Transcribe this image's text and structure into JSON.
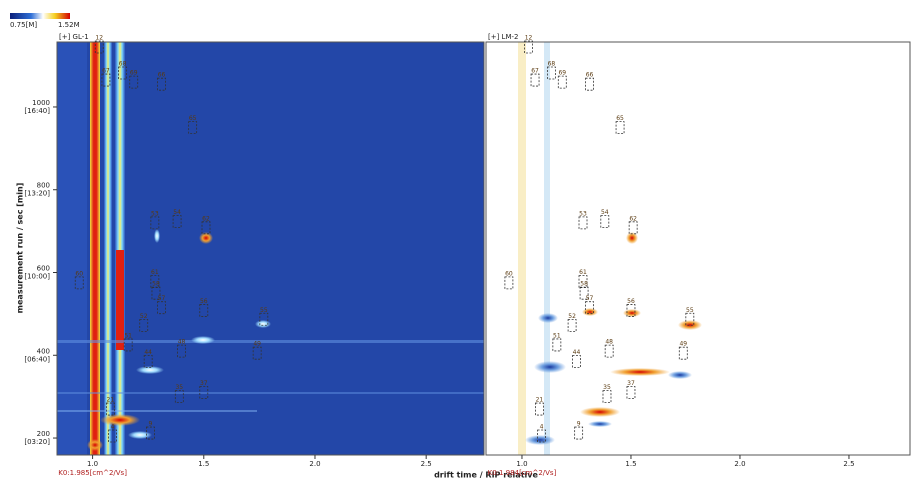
{
  "chart_data": {
    "type": "heatmap",
    "colorbar": {
      "min_label": "0.75[M]",
      "max_label": "1.52M"
    },
    "x_label": "drift time / RIP relative",
    "y_label": "measurement run / sec [min]",
    "ylim": [
      159,
      1157
    ],
    "yticks": [
      {
        "value": 200,
        "label": "200",
        "time": "[03:20]"
      },
      {
        "value": 400,
        "label": "400",
        "time": "[06:40]"
      },
      {
        "value": 600,
        "label": "600",
        "time": "[10:00]"
      },
      {
        "value": 800,
        "label": "800",
        "time": "[13:20]"
      },
      {
        "value": 1000,
        "label": "1000",
        "time": "[16:40]"
      }
    ],
    "panels": [
      {
        "title": "[+] GL-1",
        "k0_label": "K0:1.985[cm^2/Vs]",
        "xlim": [
          0.84,
          2.76
        ],
        "xticks": [
          {
            "value": 1,
            "label": "1.0"
          },
          1.5,
          {
            "value": 2,
            "label": "2.0"
          },
          2.5
        ]
      },
      {
        "title": "[+] LM-2",
        "k0_label": "K0:1.984[cm^2/Vs]",
        "xlim": [
          0.835,
          2.78
        ],
        "xticks": [
          {
            "value": 1,
            "label": "1.0"
          },
          1.5,
          {
            "value": 2,
            "label": "2.0"
          },
          2.5
        ]
      }
    ],
    "peaks": [
      {
        "name": "12",
        "x": 1.03,
        "y": 1145
      },
      {
        "name": "67",
        "x": 1.06,
        "y": 1065
      },
      {
        "name": "68",
        "x": 1.135,
        "y": 1082
      },
      {
        "name": "69",
        "x": 1.185,
        "y": 1060
      },
      {
        "name": "66",
        "x": 1.31,
        "y": 1055
      },
      {
        "name": "65",
        "x": 1.45,
        "y": 950
      },
      {
        "name": "53",
        "x": 1.28,
        "y": 720
      },
      {
        "name": "54",
        "x": 1.38,
        "y": 723
      },
      {
        "name": "62",
        "x": 1.51,
        "y": 708
      },
      {
        "name": "60",
        "x": 0.94,
        "y": 575
      },
      {
        "name": "61",
        "x": 1.28,
        "y": 578
      },
      {
        "name": "58",
        "x": 1.285,
        "y": 550
      },
      {
        "name": "57",
        "x": 1.31,
        "y": 515
      },
      {
        "name": "56",
        "x": 1.5,
        "y": 508
      },
      {
        "name": "55",
        "x": 1.77,
        "y": 487
      },
      {
        "name": "52",
        "x": 1.23,
        "y": 472
      },
      {
        "name": "51",
        "x": 1.16,
        "y": 425
      },
      {
        "name": "49",
        "x": 1.74,
        "y": 405
      },
      {
        "name": "48",
        "x": 1.4,
        "y": 410
      },
      {
        "name": "44",
        "x": 1.25,
        "y": 385
      },
      {
        "name": "37",
        "x": 1.5,
        "y": 310
      },
      {
        "name": "35",
        "x": 1.39,
        "y": 300
      },
      {
        "name": "21",
        "x": 1.08,
        "y": 270
      },
      {
        "name": "9",
        "x": 1.26,
        "y": 212
      },
      {
        "name": "4",
        "x": 1.09,
        "y": 205
      }
    ]
  }
}
